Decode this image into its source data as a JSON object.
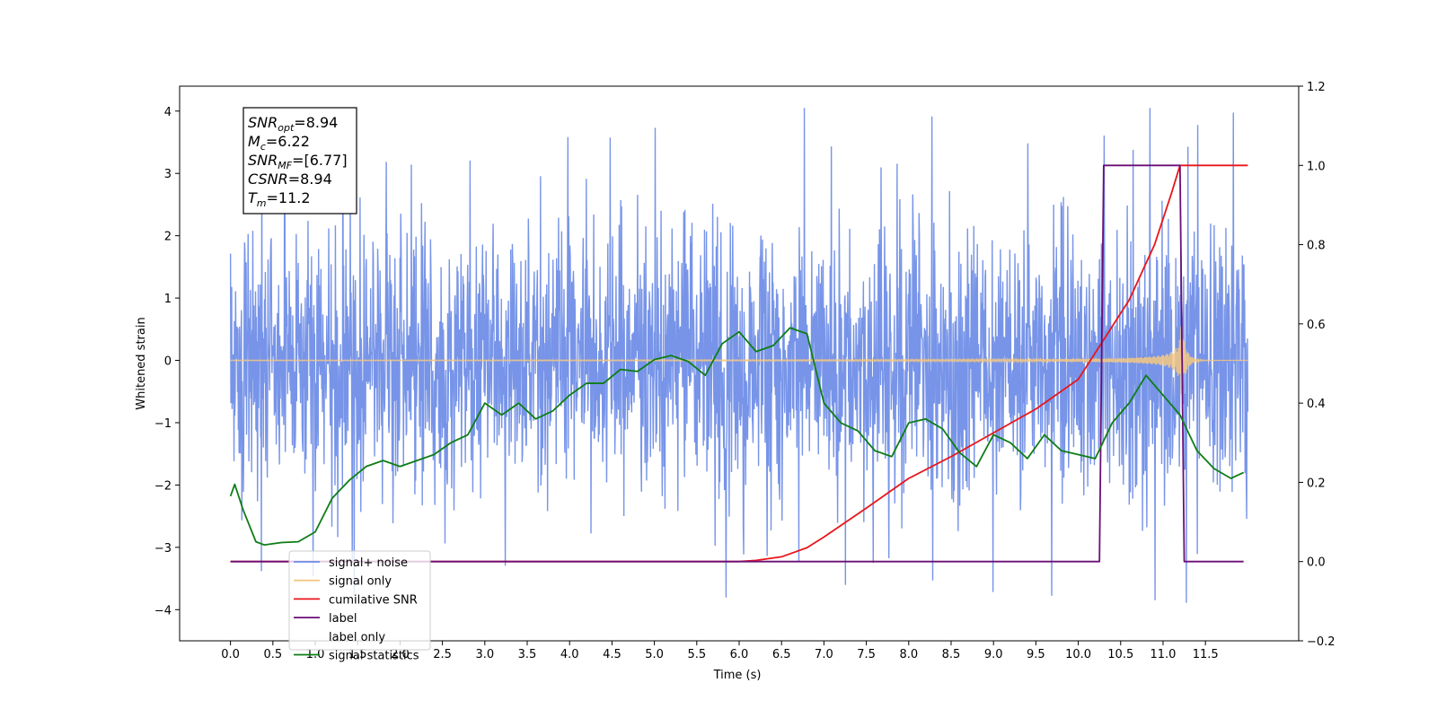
{
  "chart_data": {
    "type": "line",
    "xlabel": "Time (s)",
    "ylabel": "Whitened strain",
    "xlim": [
      -0.6,
      12.6
    ],
    "ylim": [
      -4.5,
      4.4
    ],
    "ylim_right": [
      -0.2,
      1.2
    ],
    "x_ticks": [
      "0.0",
      "0.5",
      "1.0",
      "1.5",
      "2.0",
      "2.5",
      "3.0",
      "3.5",
      "4.0",
      "4.5",
      "5.0",
      "5.5",
      "6.0",
      "6.5",
      "7.0",
      "7.5",
      "8.0",
      "8.5",
      "9.0",
      "9.5",
      "10.0",
      "10.5",
      "11.0",
      "11.5"
    ],
    "y_ticks_left": [
      "4",
      "3",
      "2",
      "1",
      "0",
      "−1",
      "−2",
      "−3",
      "−4"
    ],
    "y_ticks_right": [
      "1.2",
      "1.0",
      "0.8",
      "0.6",
      "0.4",
      "0.2",
      "0.0",
      "−0.2"
    ],
    "grid": false,
    "legend_position": "lower-left",
    "series": [
      {
        "name": "signal+ noise",
        "axis": "left",
        "color": "#6b8be6",
        "kind": "noise",
        "x_range": [
          0.0,
          12.0
        ],
        "std": 1.05,
        "peak_max": 4.05,
        "peak_min": -4.1
      },
      {
        "name": "signal only",
        "axis": "left",
        "color": "#f5c882",
        "kind": "chirp",
        "x_range": [
          0.0,
          12.0
        ],
        "merger_time": 11.2,
        "max_amplitude": 0.75
      },
      {
        "name": "cumilative SNR",
        "axis": "right",
        "color": "#e8161b",
        "x": [
          0.0,
          6.0,
          6.2,
          6.5,
          6.8,
          7.0,
          7.5,
          8.0,
          8.5,
          9.0,
          9.5,
          10.0,
          10.3,
          10.6,
          10.9,
          11.1,
          11.2,
          12.0
        ],
        "y": [
          0.0,
          0.0,
          0.003,
          0.012,
          0.035,
          0.062,
          0.135,
          0.21,
          0.265,
          0.325,
          0.385,
          0.46,
          0.56,
          0.66,
          0.8,
          0.93,
          1.0,
          1.0
        ]
      },
      {
        "name": "label",
        "axis": "right",
        "color": "#6a0f76",
        "x": [
          0.0,
          10.25,
          10.3,
          11.2,
          11.25,
          11.95
        ],
        "y": [
          0.0,
          0.0,
          1.0,
          1.0,
          0.0,
          0.0
        ]
      },
      {
        "name": "label only",
        "axis": "right",
        "color": "#c8c8c8",
        "hidden_line": true
      },
      {
        "name": "signal statistics",
        "axis": "right",
        "color": "#0f7d16",
        "x": [
          0.0,
          0.05,
          0.15,
          0.3,
          0.4,
          0.6,
          0.8,
          1.0,
          1.2,
          1.4,
          1.6,
          1.8,
          2.0,
          2.2,
          2.4,
          2.6,
          2.8,
          3.0,
          3.2,
          3.4,
          3.6,
          3.8,
          4.0,
          4.2,
          4.4,
          4.6,
          4.8,
          5.0,
          5.2,
          5.4,
          5.6,
          5.8,
          6.0,
          6.2,
          6.4,
          6.6,
          6.8,
          7.0,
          7.2,
          7.4,
          7.6,
          7.8,
          8.0,
          8.2,
          8.4,
          8.6,
          8.8,
          9.0,
          9.2,
          9.4,
          9.6,
          9.8,
          10.0,
          10.2,
          10.4,
          10.6,
          10.8,
          11.0,
          11.2,
          11.4,
          11.6,
          11.8,
          11.95
        ],
        "y": [
          0.165,
          0.195,
          0.13,
          0.05,
          0.042,
          0.048,
          0.05,
          0.075,
          0.16,
          0.205,
          0.24,
          0.255,
          0.24,
          0.255,
          0.27,
          0.3,
          0.32,
          0.4,
          0.37,
          0.4,
          0.36,
          0.38,
          0.42,
          0.45,
          0.45,
          0.485,
          0.48,
          0.51,
          0.52,
          0.505,
          0.47,
          0.55,
          0.58,
          0.53,
          0.545,
          0.59,
          0.575,
          0.4,
          0.35,
          0.33,
          0.28,
          0.265,
          0.35,
          0.36,
          0.335,
          0.275,
          0.24,
          0.32,
          0.3,
          0.26,
          0.32,
          0.28,
          0.27,
          0.26,
          0.35,
          0.4,
          0.47,
          0.42,
          0.37,
          0.28,
          0.235,
          0.21,
          0.225
        ]
      }
    ],
    "annotation": {
      "lines": [
        {
          "base": "SNR",
          "sub": "opt",
          "value": "=8.94"
        },
        {
          "base": "M",
          "sub": "c",
          "value": "=6.22"
        },
        {
          "base": "SNR",
          "sub": "MF",
          "value": "=[6.77]"
        },
        {
          "base": "CSNR",
          "sub": "",
          "value": "=8.94"
        },
        {
          "base": "T",
          "sub": "m",
          "value": "=11.2"
        }
      ]
    }
  }
}
